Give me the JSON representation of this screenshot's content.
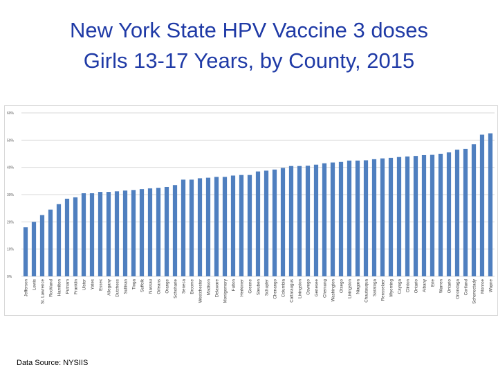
{
  "slide": {
    "title_line1": "New York State HPV Vaccine 3 doses",
    "title_line2": "Girls 13-17 Years, by County, 2015",
    "source": "Data Source: NYSIIS"
  },
  "colors": {
    "bar": "#4f7fbf",
    "grid": "#d9d9d9",
    "axis_text": "#595959",
    "title": "#1f3aa6"
  },
  "chart_data": {
    "type": "bar",
    "title": "",
    "xlabel": "",
    "ylabel": "",
    "ylim": [
      0,
      60
    ],
    "yticks": [
      0,
      10,
      20,
      30,
      40,
      50,
      60
    ],
    "ytick_labels": [
      "0%",
      "10%",
      "20%",
      "30%",
      "40%",
      "50%",
      "60%"
    ],
    "grid": true,
    "categories": [
      "Jefferson",
      "Lewis",
      "St. Lawrence",
      "Rockland",
      "Hamilton",
      "Putnam",
      "Franklin",
      "Ulster",
      "Yates",
      "Essex",
      "Allegany",
      "Dutchess",
      "Sullivan",
      "Tioga",
      "Suffolk",
      "Nassau",
      "Orleans",
      "Orange",
      "Schoharie",
      "Seneca",
      "Broome",
      "Westchester",
      "Madison",
      "Delaware",
      "Montgomery",
      "Fulton",
      "Herkimer",
      "Greene",
      "Steuben",
      "Schuyler",
      "Chenango",
      "Columbia",
      "Cattaraugus",
      "Livingston",
      "Oswego",
      "Genesee",
      "Chemung",
      "Washington",
      "Otsego",
      "Livingston",
      "Niagara",
      "Chautauqua",
      "Saratoga",
      "Rensselaer",
      "Wyoming",
      "Cayuga",
      "Clinton",
      "Ontario",
      "Albany",
      "Erie",
      "Warren",
      "Ontario",
      "Onondaga",
      "Cortland",
      "Schenectady",
      "Monroe",
      "Wayne"
    ],
    "values": [
      18,
      20,
      22.5,
      24.5,
      26.5,
      28.5,
      29,
      30.5,
      30.5,
      31,
      31,
      31.2,
      31.5,
      31.7,
      32,
      32.3,
      32.5,
      32.8,
      33.5,
      35.5,
      35.5,
      36,
      36.2,
      36.5,
      36.5,
      37,
      37.2,
      37.2,
      38.5,
      38.8,
      39.2,
      39.8,
      40.5,
      40.5,
      40.6,
      41,
      41.5,
      41.8,
      42,
      42.5,
      42.5,
      42.6,
      43,
      43.3,
      43.5,
      43.8,
      44,
      44.2,
      44.5,
      44.6,
      45,
      45.5,
      46.5,
      46.8,
      48.5,
      52,
      52.5
    ],
    "series": [
      {
        "name": "HPV 3 doses"
      }
    ]
  }
}
